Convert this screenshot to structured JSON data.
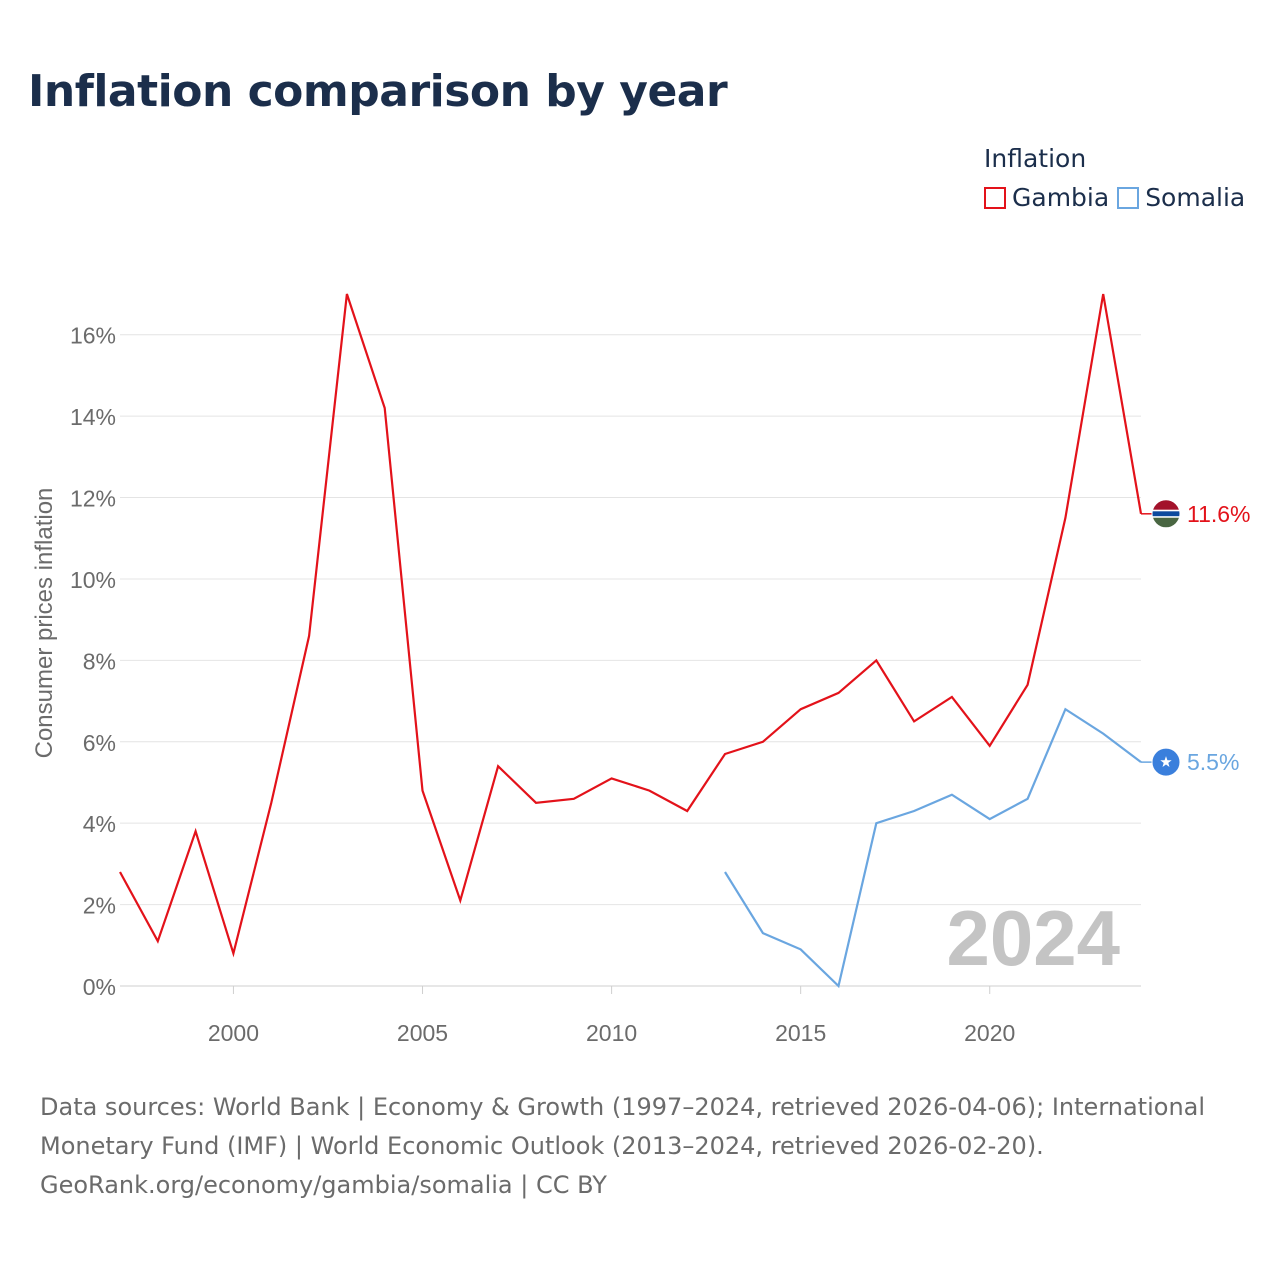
{
  "title": "Inflation comparison by year",
  "legend": {
    "title": "Inflation",
    "items": [
      {
        "label": "Gambia",
        "color": "#e3121a"
      },
      {
        "label": "Somalia",
        "color": "#6aa6e0"
      }
    ]
  },
  "chart_data": {
    "type": "line",
    "ylabel": "Consumer prices inflation",
    "xlabel": "",
    "ylim": [
      0,
      17
    ],
    "xlim": [
      1997,
      2024
    ],
    "yticks": [
      0,
      2,
      4,
      6,
      8,
      10,
      12,
      14,
      16
    ],
    "ytick_labels": [
      "0%",
      "2%",
      "4%",
      "6%",
      "8%",
      "10%",
      "12%",
      "14%",
      "16%"
    ],
    "xticks": [
      2000,
      2005,
      2010,
      2015,
      2020
    ],
    "xtick_labels": [
      "2000",
      "2005",
      "2010",
      "2015",
      "2020"
    ],
    "grid": true,
    "watermark_year": "2024",
    "series": [
      {
        "name": "Gambia",
        "color": "#e3121a",
        "end_label": "11.6%",
        "flag": "gambia-flag-icon",
        "x": [
          1997,
          1998,
          1999,
          2000,
          2001,
          2002,
          2003,
          2004,
          2005,
          2006,
          2007,
          2008,
          2009,
          2010,
          2011,
          2012,
          2013,
          2014,
          2015,
          2016,
          2017,
          2018,
          2019,
          2020,
          2021,
          2022,
          2023,
          2024
        ],
        "values": [
          2.8,
          1.1,
          3.8,
          0.8,
          4.5,
          8.6,
          17.0,
          14.2,
          4.8,
          2.1,
          5.4,
          4.5,
          4.6,
          5.1,
          4.8,
          4.3,
          5.7,
          6.0,
          6.8,
          7.2,
          8.0,
          6.5,
          7.1,
          5.9,
          7.4,
          11.5,
          17.0,
          11.6
        ]
      },
      {
        "name": "Somalia",
        "color": "#6aa6e0",
        "end_label": "5.5%",
        "flag": "somalia-flag-icon",
        "x": [
          2013,
          2014,
          2015,
          2016,
          2017,
          2018,
          2019,
          2020,
          2021,
          2022,
          2023,
          2024
        ],
        "values": [
          2.8,
          1.3,
          0.9,
          0.0,
          4.0,
          4.3,
          4.7,
          4.1,
          4.6,
          6.8,
          6.2,
          5.5
        ]
      }
    ]
  },
  "footer": {
    "line1": "Data sources: World Bank | Economy & Growth (1997–2024, retrieved 2026-04-06); International",
    "line2": "Monetary Fund (IMF) | World Economic Outlook (2013–2024, retrieved 2026-02-20).",
    "line3": "GeoRank.org/economy/gambia/somalia | CC BY"
  }
}
